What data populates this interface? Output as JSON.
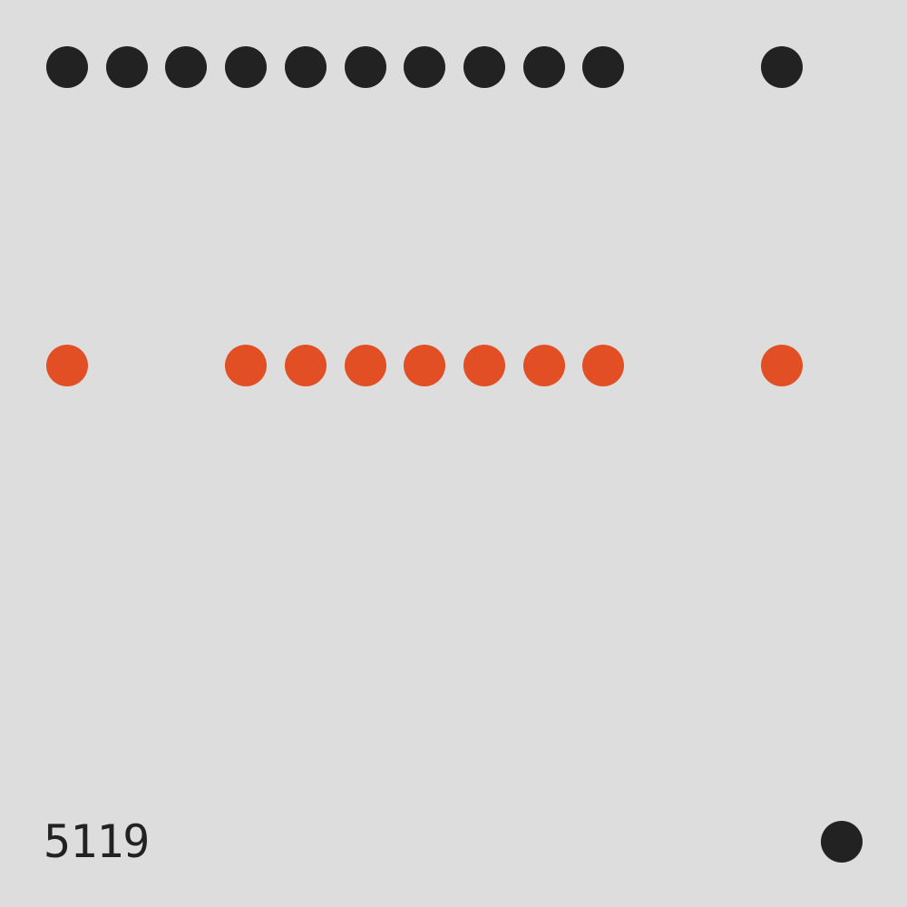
{
  "colors": {
    "background": "#dddddd",
    "dark": "#222222",
    "accent": "#e34f24"
  },
  "rows": [
    {
      "name": "top-row",
      "color": "dark",
      "cells": [
        1,
        1,
        1,
        1,
        1,
        1,
        1,
        1,
        1,
        1,
        0,
        0,
        1
      ]
    },
    {
      "name": "middle-row",
      "color": "accent",
      "cells": [
        1,
        0,
        0,
        1,
        1,
        1,
        1,
        1,
        1,
        1,
        0,
        0,
        1
      ]
    }
  ],
  "code": "5119",
  "corner_dot_color": "dark"
}
